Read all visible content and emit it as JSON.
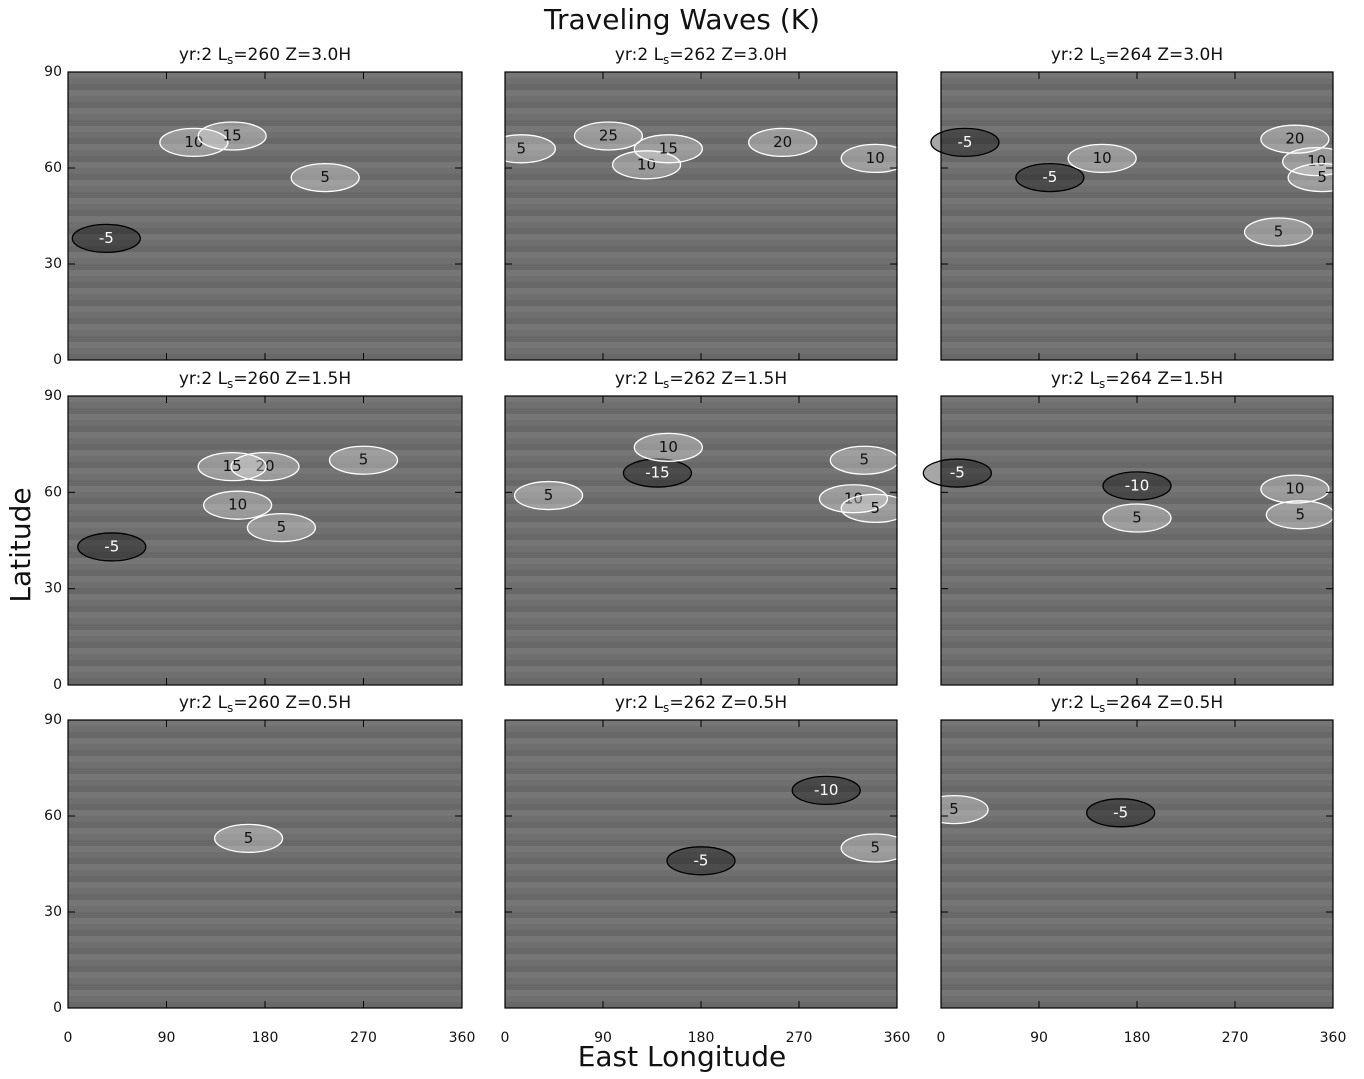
{
  "title": "Traveling Waves (K)",
  "x_label": "East Longitude",
  "y_label": "Latitude",
  "chart_data": [
    {
      "type": "contour",
      "title": {
        "prefix": "yr:2  L",
        "sub": "s",
        "suffix": "=260  Z=3.0H"
      },
      "xlim": [
        0,
        360
      ],
      "xticks": [
        0,
        90,
        180,
        270,
        360
      ],
      "ylim": [
        0,
        90
      ],
      "yticks": [
        0,
        30,
        60,
        90
      ],
      "annotations": [
        {
          "text": "-5",
          "x": 35,
          "y": 38
        },
        {
          "text": "5",
          "x": 235,
          "y": 57
        },
        {
          "text": "10",
          "x": 115,
          "y": 68
        },
        {
          "text": "15",
          "x": 150,
          "y": 70
        }
      ]
    },
    {
      "type": "contour",
      "title": {
        "prefix": "yr:2  L",
        "sub": "s",
        "suffix": "=262  Z=3.0H"
      },
      "xlim": [
        0,
        360
      ],
      "xticks": [
        0,
        90,
        180,
        270,
        360
      ],
      "ylim": [
        0,
        90
      ],
      "yticks": [
        0,
        30,
        60,
        90
      ],
      "annotations": [
        {
          "text": "25",
          "x": 95,
          "y": 70
        },
        {
          "text": "10",
          "x": 130,
          "y": 61
        },
        {
          "text": "20",
          "x": 255,
          "y": 68
        },
        {
          "text": "10",
          "x": 340,
          "y": 63
        },
        {
          "text": "5",
          "x": 15,
          "y": 66
        },
        {
          "text": "15",
          "x": 150,
          "y": 66
        }
      ]
    },
    {
      "type": "contour",
      "title": {
        "prefix": "yr:2  L",
        "sub": "s",
        "suffix": "=264  Z=3.0H"
      },
      "xlim": [
        0,
        360
      ],
      "xticks": [
        0,
        90,
        180,
        270,
        360
      ],
      "ylim": [
        0,
        90
      ],
      "yticks": [
        0,
        30,
        60,
        90
      ],
      "annotations": [
        {
          "text": "-5",
          "x": 22,
          "y": 68
        },
        {
          "text": "-5",
          "x": 100,
          "y": 57
        },
        {
          "text": "10",
          "x": 148,
          "y": 63
        },
        {
          "text": "20",
          "x": 325,
          "y": 69
        },
        {
          "text": "10",
          "x": 345,
          "y": 62
        },
        {
          "text": "5",
          "x": 350,
          "y": 57
        },
        {
          "text": "5",
          "x": 310,
          "y": 40
        }
      ]
    },
    {
      "type": "contour",
      "title": {
        "prefix": "yr:2  L",
        "sub": "s",
        "suffix": "=260  Z=1.5H"
      },
      "xlim": [
        0,
        360
      ],
      "xticks": [
        0,
        90,
        180,
        270,
        360
      ],
      "ylim": [
        0,
        90
      ],
      "yticks": [
        0,
        30,
        60,
        90
      ],
      "annotations": [
        {
          "text": "20",
          "x": 180,
          "y": 68
        },
        {
          "text": "15",
          "x": 150,
          "y": 68
        },
        {
          "text": "10",
          "x": 155,
          "y": 56
        },
        {
          "text": "5",
          "x": 195,
          "y": 49
        },
        {
          "text": "-5",
          "x": 40,
          "y": 43
        },
        {
          "text": "5",
          "x": 270,
          "y": 70
        }
      ]
    },
    {
      "type": "contour",
      "title": {
        "prefix": "yr:2  L",
        "sub": "s",
        "suffix": "=262  Z=1.5H"
      },
      "xlim": [
        0,
        360
      ],
      "xticks": [
        0,
        90,
        180,
        270,
        360
      ],
      "ylim": [
        0,
        90
      ],
      "yticks": [
        0,
        30,
        60,
        90
      ],
      "annotations": [
        {
          "text": "-15",
          "x": 140,
          "y": 66
        },
        {
          "text": "10",
          "x": 150,
          "y": 74
        },
        {
          "text": "5",
          "x": 40,
          "y": 59
        },
        {
          "text": "10",
          "x": 320,
          "y": 58
        },
        {
          "text": "5",
          "x": 340,
          "y": 55
        },
        {
          "text": "5",
          "x": 330,
          "y": 70
        }
      ]
    },
    {
      "type": "contour",
      "title": {
        "prefix": "yr:2  L",
        "sub": "s",
        "suffix": "=264  Z=1.5H"
      },
      "xlim": [
        0,
        360
      ],
      "xticks": [
        0,
        90,
        180,
        270,
        360
      ],
      "ylim": [
        0,
        90
      ],
      "yticks": [
        0,
        30,
        60,
        90
      ],
      "annotations": [
        {
          "text": "-5",
          "x": 15,
          "y": 66
        },
        {
          "text": "-10",
          "x": 180,
          "y": 62
        },
        {
          "text": "5",
          "x": 180,
          "y": 52
        },
        {
          "text": "10",
          "x": 325,
          "y": 61
        },
        {
          "text": "5",
          "x": 330,
          "y": 53
        }
      ]
    },
    {
      "type": "contour",
      "title": {
        "prefix": "yr:2  L",
        "sub": "s",
        "suffix": "=260  Z=0.5H"
      },
      "xlim": [
        0,
        360
      ],
      "xticks": [
        0,
        90,
        180,
        270,
        360
      ],
      "ylim": [
        0,
        90
      ],
      "yticks": [
        0,
        30,
        60,
        90
      ],
      "annotations": [
        {
          "text": "5",
          "x": 165,
          "y": 53
        }
      ]
    },
    {
      "type": "contour",
      "title": {
        "prefix": "yr:2  L",
        "sub": "s",
        "suffix": "=262  Z=0.5H"
      },
      "xlim": [
        0,
        360
      ],
      "xticks": [
        0,
        90,
        180,
        270,
        360
      ],
      "ylim": [
        0,
        90
      ],
      "yticks": [
        0,
        30,
        60,
        90
      ],
      "annotations": [
        {
          "text": "-10",
          "x": 295,
          "y": 68
        },
        {
          "text": "-5",
          "x": 180,
          "y": 46
        },
        {
          "text": "5",
          "x": 340,
          "y": 50
        }
      ]
    },
    {
      "type": "contour",
      "title": {
        "prefix": "yr:2  L",
        "sub": "s",
        "suffix": "=264  Z=0.5H"
      },
      "xlim": [
        0,
        360
      ],
      "xticks": [
        0,
        90,
        180,
        270,
        360
      ],
      "ylim": [
        0,
        90
      ],
      "yticks": [
        0,
        30,
        60,
        90
      ],
      "annotations": [
        {
          "text": "5",
          "x": 12,
          "y": 62
        },
        {
          "text": "-5",
          "x": 165,
          "y": 61
        }
      ]
    }
  ]
}
